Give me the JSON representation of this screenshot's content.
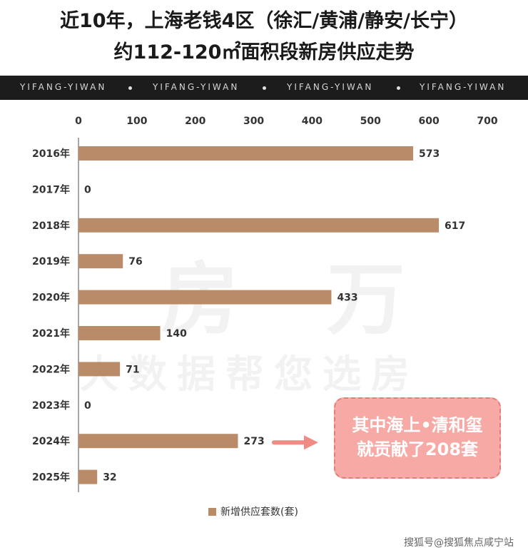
{
  "header": {
    "title_line1": "近10年，上海老钱4区（徐汇/黄浦/静安/长宁）",
    "title_line2": "约112-120㎡面积段新房供应走势"
  },
  "brand_bar": {
    "items": [
      "YIFANG-YIWAN",
      "YIFANG-YIWAN",
      "YIFANG-YIWAN",
      "YIFANG-YIWAN"
    ]
  },
  "watermark": {
    "line1": "一房一万",
    "line2": "大数据帮您选房"
  },
  "callout": {
    "line1": "其中海上•清和玺",
    "line2": "就贡献了208套"
  },
  "footer": {
    "text": "搜狐号@搜狐焦点咸宁站"
  },
  "colors": {
    "bar": "#b98b68",
    "callout_bg": "#f6a9a5",
    "arrow": "#f08a84",
    "brand_bar_bg": "#1c1c1c"
  },
  "chart_data": {
    "type": "bar",
    "orientation": "horizontal",
    "categories": [
      "2016年",
      "2017年",
      "2018年",
      "2019年",
      "2020年",
      "2021年",
      "2022年",
      "2023年",
      "2024年",
      "2025年"
    ],
    "series": [
      {
        "name": "新增供应套数(套)",
        "values": [
          573,
          0,
          617,
          76,
          433,
          140,
          71,
          0,
          273,
          32
        ]
      }
    ],
    "xlim": [
      0,
      700
    ],
    "x_ticks": [
      0,
      100,
      200,
      300,
      400,
      500,
      600,
      700
    ],
    "tick_axis_position": "top",
    "legend_position": "bottom-center",
    "grid": false
  }
}
